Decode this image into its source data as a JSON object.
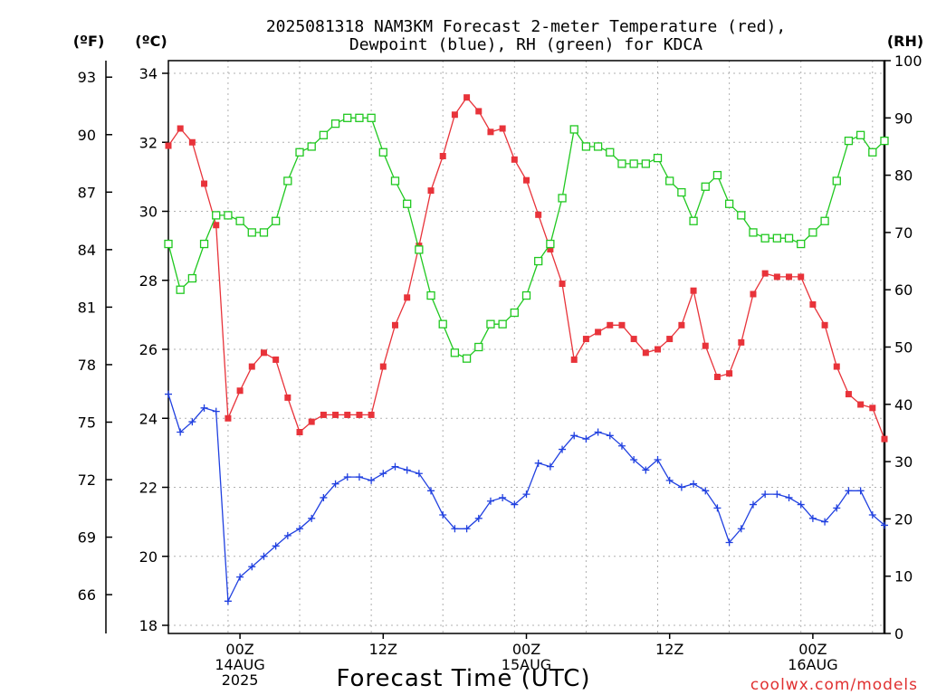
{
  "chart_data": {
    "type": "line",
    "title_line1": "2025081318 NAM3KM Forecast 2-meter Temperature (red),",
    "title_line2": "Dewpoint (blue), RH (green) for KDCA",
    "xlabel": "Forecast Time (UTC)",
    "credit": "coolwx.com/models",
    "credit_color": "#e03030",
    "unit_f": "(ºF)",
    "unit_c": "(ºC)",
    "unit_rh": "(RH)",
    "ylim_c": [
      18,
      34
    ],
    "ylim_rh": [
      0,
      100
    ],
    "c_ticks": [
      "18",
      "20",
      "22",
      "24",
      "26",
      "28",
      "30",
      "32",
      "34"
    ],
    "f_ticks": [
      "66",
      "69",
      "72",
      "75",
      "78",
      "81",
      "84",
      "87",
      "90",
      "93"
    ],
    "rh_ticks": [
      "0",
      "10",
      "20",
      "30",
      "40",
      "50",
      "60",
      "70",
      "80",
      "90",
      "100"
    ],
    "x_ticks": [
      {
        "label1": "00Z",
        "label2": "14AUG",
        "label3": "2025"
      },
      {
        "label1": "12Z",
        "label2": "",
        "label3": ""
      },
      {
        "label1": "00Z",
        "label2": "15AUG",
        "label3": ""
      },
      {
        "label1": "12Z",
        "label2": "",
        "label3": ""
      },
      {
        "label1": "00Z",
        "label2": "16AUG",
        "label3": ""
      }
    ],
    "x_hours_start": 0,
    "x_hours_end": 60,
    "x_hours_step": 1,
    "series": [
      {
        "name": "Temperature (red)",
        "unit": "C",
        "color": "#e8333a",
        "marker": "filled-square",
        "values": [
          31.9,
          32.4,
          32.0,
          30.8,
          29.6,
          24.0,
          24.8,
          25.5,
          25.9,
          25.7,
          24.6,
          23.6,
          23.9,
          24.1,
          24.1,
          24.1,
          24.1,
          24.1,
          25.5,
          26.7,
          27.5,
          29.0,
          30.6,
          31.6,
          32.8,
          33.3,
          32.9,
          32.3,
          32.4,
          31.5,
          30.9,
          29.9,
          28.9,
          27.9,
          25.7,
          26.3,
          26.5,
          26.7,
          26.7,
          26.3,
          25.9,
          26.0,
          26.3,
          26.7,
          27.7,
          26.1,
          25.2,
          25.3,
          26.2,
          27.6,
          28.2,
          28.1,
          28.1,
          28.1,
          27.3,
          26.7,
          25.5,
          24.7,
          24.4,
          24.3,
          23.4
        ]
      },
      {
        "name": "Dewpoint (blue)",
        "unit": "C",
        "color": "#2040e0",
        "marker": "plus",
        "values": [
          24.7,
          23.6,
          23.9,
          24.3,
          24.2,
          18.7,
          19.4,
          19.7,
          20.0,
          20.3,
          20.6,
          20.8,
          21.1,
          21.7,
          22.1,
          22.3,
          22.3,
          22.2,
          22.4,
          22.6,
          22.5,
          22.4,
          21.9,
          21.2,
          20.8,
          20.8,
          21.1,
          21.6,
          21.7,
          21.5,
          21.8,
          22.7,
          22.6,
          23.1,
          23.5,
          23.4,
          23.6,
          23.5,
          23.2,
          22.8,
          22.5,
          22.8,
          22.2,
          22.0,
          22.1,
          21.9,
          21.4,
          20.4,
          20.8,
          21.5,
          21.8,
          21.8,
          21.7,
          21.5,
          21.1,
          21.0,
          21.4,
          21.9,
          21.9,
          21.2,
          20.9
        ]
      },
      {
        "name": "RH (green)",
        "unit": "%",
        "color": "#20c820",
        "marker": "open-square",
        "values": [
          68,
          60,
          62,
          68,
          73,
          73,
          72,
          70,
          70,
          72,
          79,
          84,
          85,
          87,
          89,
          90,
          90,
          90,
          84,
          79,
          75,
          67,
          59,
          54,
          49,
          48,
          50,
          54,
          54,
          56,
          59,
          65,
          68,
          76,
          88,
          85,
          85,
          84,
          82,
          82,
          82,
          83,
          79,
          77,
          72,
          78,
          80,
          75,
          73,
          70,
          69,
          69,
          69,
          68,
          70,
          72,
          79,
          86,
          87,
          84,
          86
        ]
      }
    ]
  }
}
